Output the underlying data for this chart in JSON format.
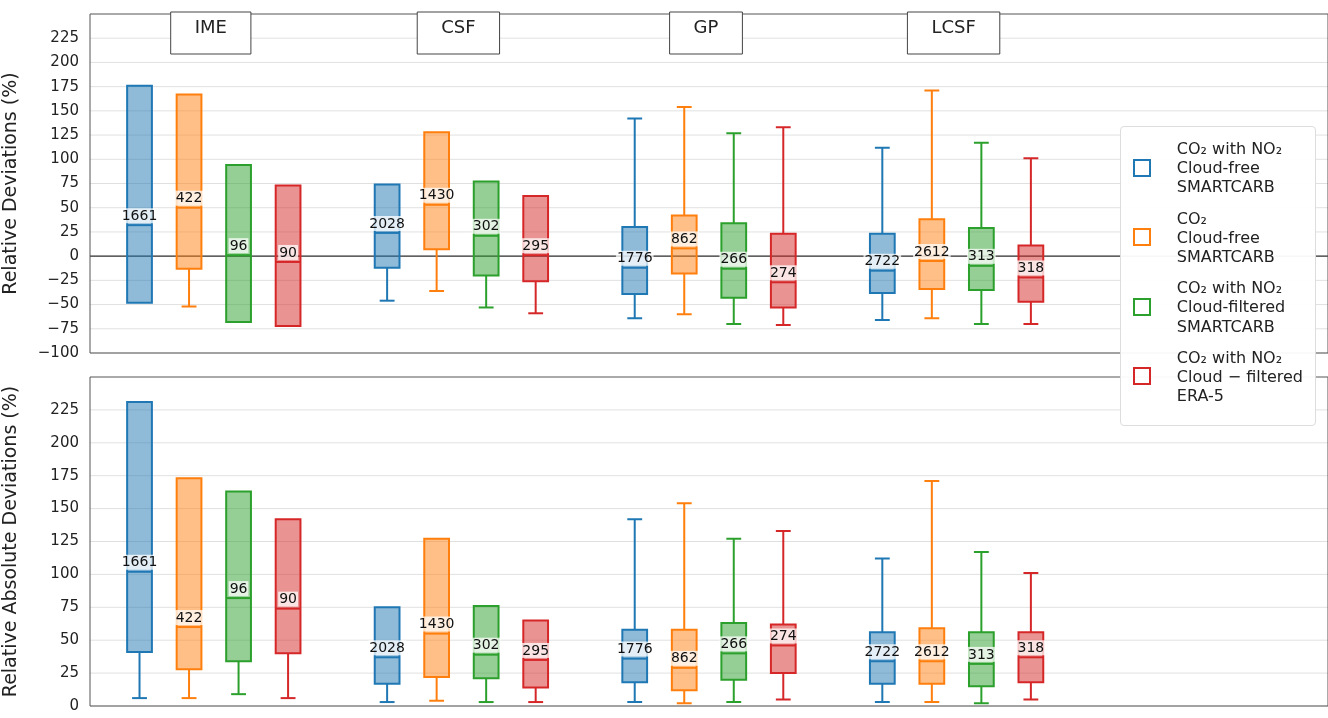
{
  "chart_data": [
    {
      "type": "box",
      "ylabel": "Relative Deviations (%)",
      "categories": [
        "IME",
        "CSF",
        "GP",
        "LCSF",
        null
      ],
      "ylim": [
        -100,
        250
      ],
      "yticks": [
        -100,
        -75,
        -50,
        -25,
        0,
        25,
        50,
        75,
        100,
        125,
        150,
        175,
        200,
        225
      ],
      "grid": "y",
      "legend": "right",
      "ref_lines": [
        {
          "axis": "y",
          "value": 0
        }
      ],
      "series": [
        {
          "name": "CO₂ with NO₂\nCloud-free\nSMARTCARB",
          "color": "#1f77b4",
          "value_labels": [
            "1661",
            "2028",
            "1776",
            "2722",
            null
          ],
          "boxes": [
            {
              "low": null,
              "q1": -48,
              "median": 32,
              "q3": 176,
              "high": null
            },
            {
              "low": -46,
              "q1": -12,
              "median": 24,
              "q3": 74,
              "high": null
            },
            {
              "low": -64,
              "q1": -39,
              "median": -12,
              "q3": 30,
              "high": 142
            },
            {
              "low": -66,
              "q1": -38,
              "median": -15,
              "q3": 23,
              "high": 112
            },
            null
          ]
        },
        {
          "name": "CO₂\nCloud-free\nSMARTCARB",
          "color": "#ff7f0e",
          "value_labels": [
            "422",
            "1430",
            "862",
            "2612",
            null
          ],
          "boxes": [
            {
              "low": -52,
              "q1": -13,
              "median": 50,
              "q3": 167,
              "high": null
            },
            {
              "low": -36,
              "q1": 7,
              "median": 53,
              "q3": 128,
              "high": null
            },
            {
              "low": -60,
              "q1": -18,
              "median": 8,
              "q3": 42,
              "high": 154
            },
            {
              "low": -64,
              "q1": -34,
              "median": -5,
              "q3": 38,
              "high": 171
            },
            null
          ]
        },
        {
          "name": "CO₂ with NO₂\nCloud-filtered\nSMARTCARB",
          "color": "#2ca02c",
          "value_labels": [
            "96",
            "302",
            "266",
            "313",
            null
          ],
          "boxes": [
            {
              "low": null,
              "q1": -68,
              "median": 1,
              "q3": 94,
              "high": null
            },
            {
              "low": -53,
              "q1": -20,
              "median": 21,
              "q3": 77,
              "high": null
            },
            {
              "low": -70,
              "q1": -43,
              "median": -13,
              "q3": 34,
              "high": 127
            },
            {
              "low": -70,
              "q1": -35,
              "median": -10,
              "q3": 29,
              "high": 117
            },
            null
          ]
        },
        {
          "name": "CO₂ with NO₂\nCloud − filtered\nERA-5",
          "color": "#d62728",
          "value_labels": [
            "90",
            "295",
            "274",
            "318",
            null
          ],
          "boxes": [
            {
              "low": null,
              "q1": -72,
              "median": -6,
              "q3": 73,
              "high": null
            },
            {
              "low": -59,
              "q1": -26,
              "median": 1,
              "q3": 62,
              "high": null
            },
            {
              "low": -71,
              "q1": -53,
              "median": -27,
              "q3": 23,
              "high": 133
            },
            {
              "low": -70,
              "q1": -47,
              "median": -22,
              "q3": 11,
              "high": 101
            },
            null
          ]
        }
      ]
    },
    {
      "type": "box",
      "ylabel": "Relative Absolute Deviations (%)",
      "categories": [
        null,
        null,
        null,
        null,
        null
      ],
      "ylim": [
        0,
        250
      ],
      "yticks": [
        0,
        25,
        50,
        75,
        100,
        125,
        150,
        175,
        200,
        225
      ],
      "grid": "y",
      "tick_labels": "y",
      "series": [
        {
          "color": "#1f77b4",
          "value_labels": [
            "1661",
            "2028",
            "1776",
            "2722",
            null
          ],
          "boxes": [
            {
              "low": 6,
              "q1": 41,
              "median": 102,
              "q3": 231,
              "high": null
            },
            {
              "low": 3,
              "q1": 17,
              "median": 37,
              "q3": 75,
              "high": null
            },
            {
              "low": 3,
              "q1": 18,
              "median": 36,
              "q3": 58,
              "high": 142
            },
            {
              "low": 3,
              "q1": 17,
              "median": 34,
              "q3": 56,
              "high": 112
            },
            null
          ]
        },
        {
          "color": "#ff7f0e",
          "value_labels": [
            "422",
            "1430",
            "862",
            "2612",
            null
          ],
          "boxes": [
            {
              "low": 6,
              "q1": 28,
              "median": 60,
              "q3": 173,
              "high": null
            },
            {
              "low": 4,
              "q1": 22,
              "median": 55,
              "q3": 127,
              "high": null
            },
            {
              "low": 2,
              "q1": 12,
              "median": 29,
              "q3": 58,
              "high": 154
            },
            {
              "low": 3,
              "q1": 17,
              "median": 34,
              "q3": 59,
              "high": 171
            },
            null
          ]
        },
        {
          "color": "#2ca02c",
          "value_labels": [
            "96",
            "302",
            "266",
            "313",
            null
          ],
          "boxes": [
            {
              "low": 9,
              "q1": 34,
              "median": 82,
              "q3": 163,
              "high": null
            },
            {
              "low": 3,
              "q1": 21,
              "median": 39,
              "q3": 76,
              "high": null
            },
            {
              "low": 3,
              "q1": 20,
              "median": 40,
              "q3": 63,
              "high": 127
            },
            {
              "low": 2,
              "q1": 15,
              "median": 32,
              "q3": 56,
              "high": 117
            },
            null
          ]
        },
        {
          "color": "#d62728",
          "value_labels": [
            "90",
            "295",
            "274",
            "318",
            null
          ],
          "boxes": [
            {
              "low": 6,
              "q1": 40,
              "median": 74,
              "q3": 142,
              "high": null
            },
            {
              "low": 3,
              "q1": 14,
              "median": 35,
              "q3": 65,
              "high": null
            },
            {
              "low": 5,
              "q1": 25,
              "median": 46,
              "q3": 62,
              "high": 133
            },
            {
              "low": 5,
              "q1": 18,
              "median": 37,
              "q3": 56,
              "high": 101
            },
            null
          ]
        }
      ]
    }
  ]
}
